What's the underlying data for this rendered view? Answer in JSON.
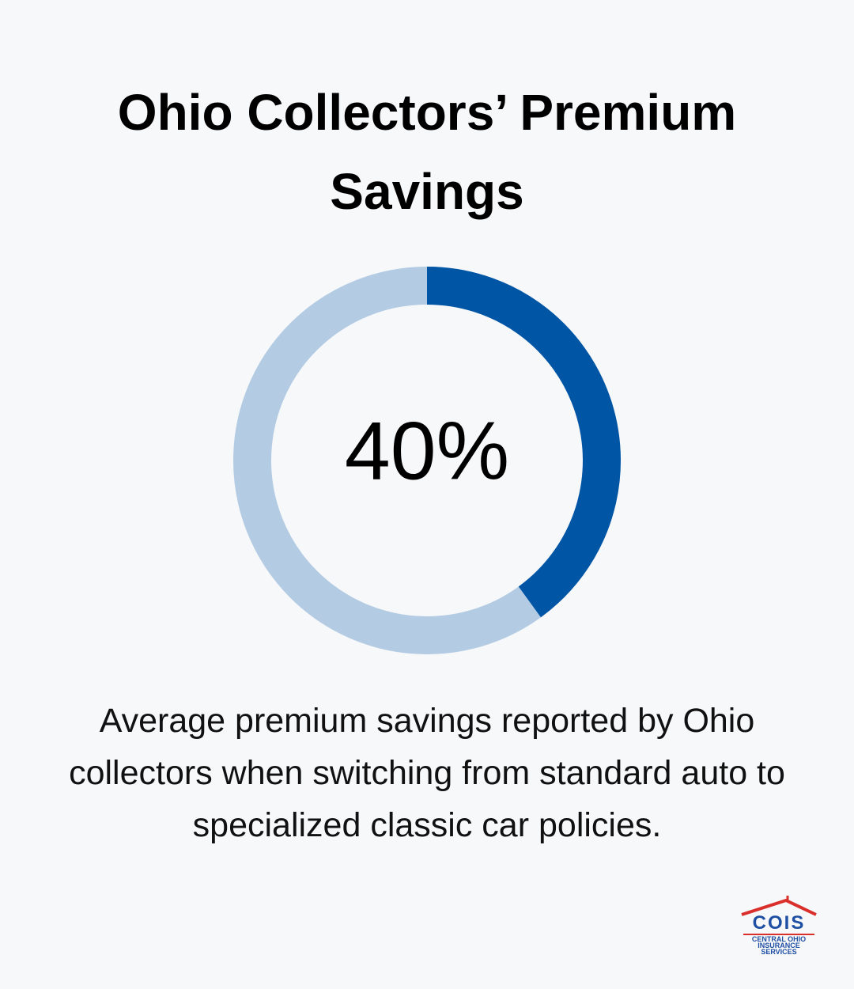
{
  "chart_data": {
    "type": "donut",
    "title": "Ohio Collectors’ Premium Savings",
    "values": [
      40
    ],
    "value_labels": [
      "40%"
    ],
    "ylim": [
      0,
      100
    ],
    "color": "#0055a5",
    "track_color": "#b3cbe3",
    "description": "Average premium savings reported by Ohio collectors when switching from standard auto to specialized classic car policies."
  },
  "logo": {
    "name": "COIS",
    "line1": "CENTRAL OHIO",
    "line2": "INSURANCE",
    "line3": "SERVICES"
  }
}
